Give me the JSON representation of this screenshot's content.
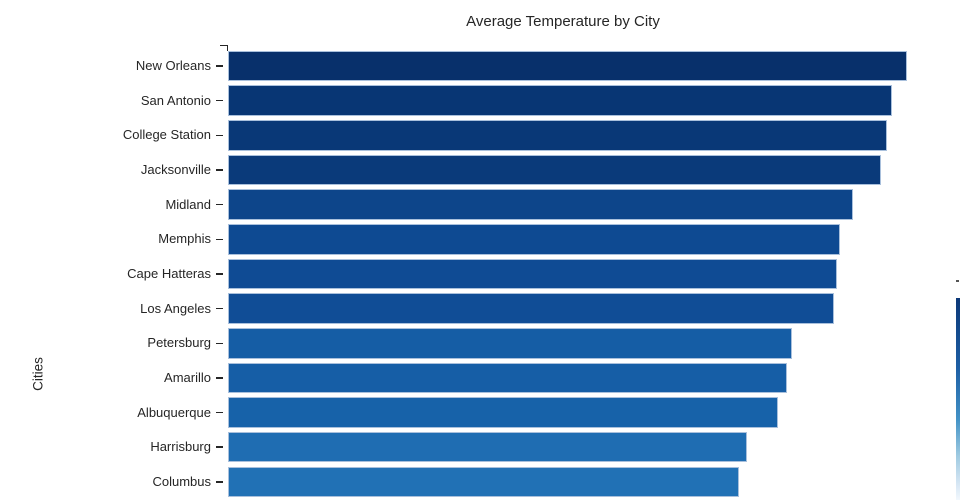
{
  "chart_data": {
    "type": "bar",
    "orientation": "horizontal",
    "title": "Average Temperature by City",
    "xlabel": "",
    "ylabel": "Cities",
    "categories": [
      "New Orleans",
      "San Antonio",
      "College Station",
      "Jacksonville",
      "Midland",
      "Memphis",
      "Cape Hatteras",
      "Los Angeles",
      "Petersburg",
      "Amarillo",
      "Albuquerque",
      "Harrisburg",
      "Columbus"
    ],
    "values": [
      70.0,
      68.4,
      67.9,
      67.3,
      64.4,
      63.1,
      62.7,
      62.4,
      58.1,
      57.6,
      56.7,
      53.5,
      52.7
    ],
    "xlim": [
      0,
      73
    ],
    "grid": false,
    "legend": "none",
    "x_axis_visible": false,
    "bar_edge_color": "#a9c0dc",
    "bar_colors": [
      "#08306b",
      "#083674",
      "#093877",
      "#0a3a7a",
      "#0d458a",
      "#0e4a92",
      "#0f4b94",
      "#104d96",
      "#155da5",
      "#165ea6",
      "#1762a9",
      "#1f6db2",
      "#2171b5"
    ],
    "colorbar": {
      "position": "right-edge-partially-cut",
      "top_color": "#0c3878",
      "mid_color": "#4292c6",
      "bottom_color": "#f2f8fd"
    }
  }
}
